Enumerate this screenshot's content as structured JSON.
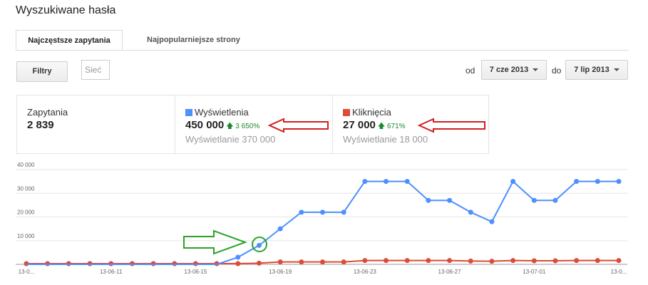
{
  "page": {
    "title": "Wyszukiwane hasła"
  },
  "tabs": [
    {
      "label": "Najczęstsze zapytania"
    },
    {
      "label": "Najpopularniejsze strony"
    }
  ],
  "toolbar": {
    "filters_label": "Filtry",
    "search_value": "Sieć"
  },
  "date_range": {
    "from_label": "od",
    "from_value": "7 cze 2013",
    "to_label": "do",
    "to_value": "7 lip 2013"
  },
  "stats": {
    "queries": {
      "label": "Zapytania",
      "value": "2 839"
    },
    "impressions": {
      "label": "Wyświetlenia",
      "value": "450 000",
      "change": "3 650%",
      "sub": "Wyświetlanie 370 000",
      "color": "#4d90fe"
    },
    "clicks": {
      "label": "Kliknięcia",
      "value": "27 000",
      "change": "671%",
      "sub": "Wyświetlanie 18 000",
      "color": "#dd4b39"
    }
  },
  "chart_data": {
    "type": "line",
    "y_ticks": [
      "40 000",
      "30 000",
      "20 000",
      "10 000",
      "0"
    ],
    "ylim": [
      0,
      40000
    ],
    "x_tick_labels": [
      "13-0...",
      "13-06-11",
      "13-06-15",
      "13-06-19",
      "13-06-23",
      "13-06-27",
      "13-07-01",
      "13-0..."
    ],
    "grid": true,
    "series": [
      {
        "name": "Wyświetlenia",
        "color": "#4d90fe",
        "values": [
          0,
          0,
          0,
          0,
          0,
          0,
          0,
          0,
          0,
          0,
          3000,
          8000,
          15000,
          22000,
          22000,
          22000,
          35000,
          35000,
          35000,
          27000,
          27000,
          22000,
          18000,
          35000,
          27000,
          27000,
          35000,
          35000,
          35000
        ]
      },
      {
        "name": "Kliknięcia",
        "color": "#dd4b39",
        "values": [
          300,
          300,
          300,
          300,
          300,
          300,
          300,
          300,
          300,
          300,
          300,
          500,
          1000,
          1000,
          1000,
          1000,
          1600,
          1600,
          1600,
          1600,
          1600,
          1400,
          1300,
          1600,
          1500,
          1500,
          1600,
          1600,
          1600
        ]
      }
    ]
  }
}
